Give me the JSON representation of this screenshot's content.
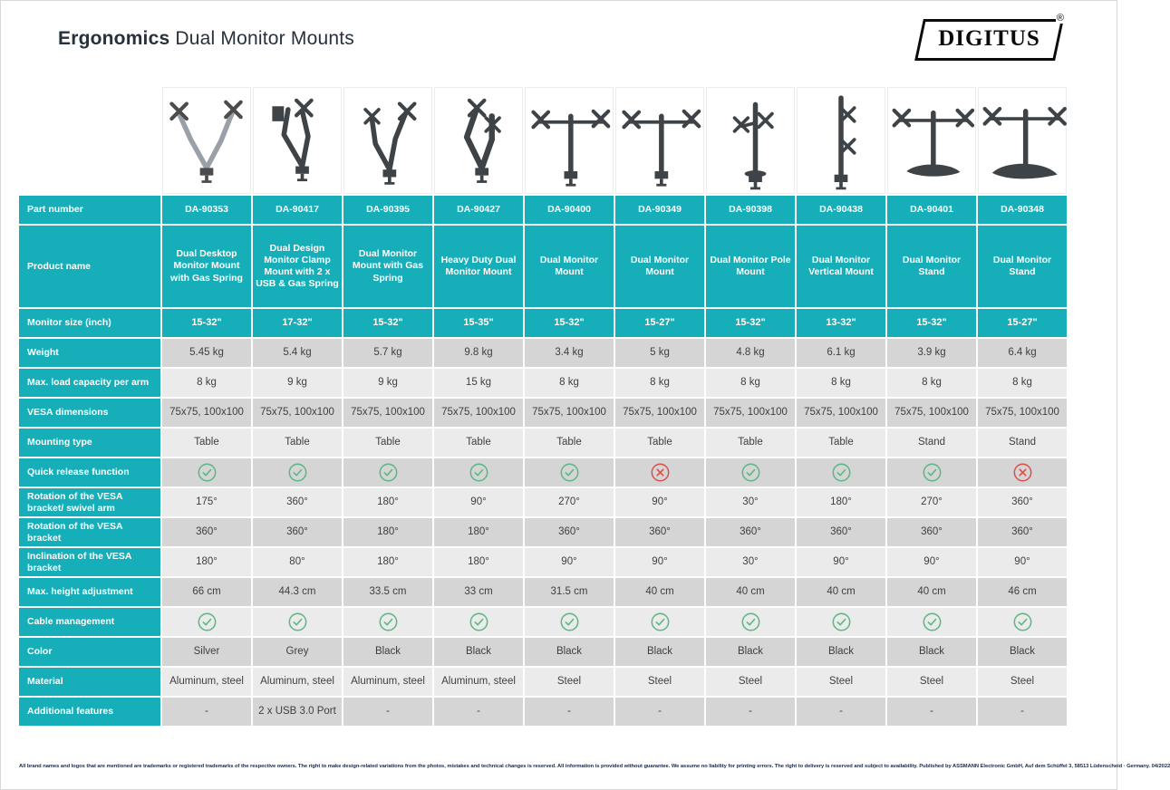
{
  "page": {
    "title_bold": "Ergonomics",
    "title_regular": "Dual Monitor Mounts",
    "brand": "DIGITUS",
    "brand_reg": "®",
    "footer": "All brand names and logos that are mentioned are trademarks or registered trademarks of the respective owners. The right to make design-related variations from the photos, mistakes and technical changes is reserved. All information is provided without guarantee. We assume no liability for printing errors. The right to delivery is reserved and subject to availability. Published by ASSMANN Electronic GmbH, Auf dem Schüffel 3, 58513 Lüdenscheid · Germany. 04/2022"
  },
  "colors": {
    "teal": "#15aeb9",
    "row_dark": "#d5d5d5",
    "row_light": "#ebebeb",
    "check_green": "#5cb885",
    "cross_red": "#d9534f",
    "cell_text": "#3f3f3f",
    "title_ink": "#27313b"
  },
  "table": {
    "row_labels": {
      "part_number": "Part number",
      "product_name": "Product name",
      "monitor_size": "Monitor size (inch)",
      "weight": "Weight",
      "max_load": "Max. load capacity per arm",
      "vesa": "VESA dimensions",
      "mounting": "Mounting type",
      "quick_release": "Quick release function",
      "rotation_swivel": "Rotation of the VESA bracket/ swivel arm",
      "rotation_bracket": "Rotation of the VESA bracket",
      "inclination": "Inclination of the VESA bracket",
      "max_height": "Max. height adjustment",
      "cable": "Cable management",
      "color": "Color",
      "material": "Material",
      "additional": "Additional features"
    },
    "products": [
      {
        "part_number": "DA-90353",
        "product_name": "Dual Desktop Monitor Mount with Gas Spring",
        "monitor_size": "15-32\"",
        "weight": "5.45 kg",
        "max_load": "8 kg",
        "vesa": "75x75, 100x100",
        "mounting": "Table",
        "quick_release": true,
        "rotation_swivel": "175°",
        "rotation_bracket": "360°",
        "inclination": "180°",
        "max_height": "66 cm",
        "cable": true,
        "color": "Silver",
        "material": "Aluminum, steel",
        "additional": "-",
        "image": "arms-silver"
      },
      {
        "part_number": "DA-90417",
        "product_name": "Dual Design Monitor Clamp Mount with 2 x USB & Gas Spring",
        "monitor_size": "17-32\"",
        "weight": "5.4 kg",
        "max_load": "9 kg",
        "vesa": "75x75, 100x100",
        "mounting": "Table",
        "quick_release": true,
        "rotation_swivel": "360°",
        "rotation_bracket": "360°",
        "inclination": "80°",
        "max_height": "44.3 cm",
        "cable": true,
        "color": "Grey",
        "material": "Aluminum, steel",
        "additional": "2 x USB 3.0 Port",
        "image": "arms-2"
      },
      {
        "part_number": "DA-90395",
        "product_name": "Dual Monitor Mount with Gas Spring",
        "monitor_size": "15-32\"",
        "weight": "5.7 kg",
        "max_load": "9 kg",
        "vesa": "75x75, 100x100",
        "mounting": "Table",
        "quick_release": true,
        "rotation_swivel": "180°",
        "rotation_bracket": "180°",
        "inclination": "180°",
        "max_height": "33.5 cm",
        "cable": true,
        "color": "Black",
        "material": "Aluminum, steel",
        "additional": "-",
        "image": "arms-3"
      },
      {
        "part_number": "DA-90427",
        "product_name": "Heavy Duty Dual Monitor Mount",
        "monitor_size": "15-35\"",
        "weight": "9.8 kg",
        "max_load": "15 kg",
        "vesa": "75x75, 100x100",
        "mounting": "Table",
        "quick_release": true,
        "rotation_swivel": "90°",
        "rotation_bracket": "180°",
        "inclination": "180°",
        "max_height": "33 cm",
        "cable": true,
        "color": "Black",
        "material": "Aluminum, steel",
        "additional": "-",
        "image": "arms-4"
      },
      {
        "part_number": "DA-90400",
        "product_name": "Dual Monitor Mount",
        "monitor_size": "15-32\"",
        "weight": "3.4 kg",
        "max_load": "8 kg",
        "vesa": "75x75, 100x100",
        "mounting": "Table",
        "quick_release": true,
        "rotation_swivel": "270°",
        "rotation_bracket": "360°",
        "inclination": "90°",
        "max_height": "31.5 cm",
        "cable": true,
        "color": "Black",
        "material": "Steel",
        "additional": "-",
        "image": "crossbar"
      },
      {
        "part_number": "DA-90349",
        "product_name": "Dual Monitor Mount",
        "monitor_size": "15-27\"",
        "weight": "5 kg",
        "max_load": "8 kg",
        "vesa": "75x75, 100x100",
        "mounting": "Table",
        "quick_release": false,
        "rotation_swivel": "90°",
        "rotation_bracket": "360°",
        "inclination": "90°",
        "max_height": "40 cm",
        "cable": true,
        "color": "Black",
        "material": "Steel",
        "additional": "-",
        "image": "crossbar"
      },
      {
        "part_number": "DA-90398",
        "product_name": "Dual Monitor Pole Mount",
        "monitor_size": "15-32\"",
        "weight": "4.8 kg",
        "max_load": "8 kg",
        "vesa": "75x75, 100x100",
        "mounting": "Table",
        "quick_release": true,
        "rotation_swivel": "30°",
        "rotation_bracket": "360°",
        "inclination": "30°",
        "max_height": "40 cm",
        "cable": true,
        "color": "Black",
        "material": "Steel",
        "additional": "-",
        "image": "pole"
      },
      {
        "part_number": "DA-90438",
        "product_name": "Dual Monitor Vertical Mount",
        "monitor_size": "13-32\"",
        "weight": "6.1 kg",
        "max_load": "8 kg",
        "vesa": "75x75, 100x100",
        "mounting": "Table",
        "quick_release": true,
        "rotation_swivel": "180°",
        "rotation_bracket": "360°",
        "inclination": "90°",
        "max_height": "40 cm",
        "cable": true,
        "color": "Black",
        "material": "Steel",
        "additional": "-",
        "image": "vertical"
      },
      {
        "part_number": "DA-90401",
        "product_name": "Dual Monitor Stand",
        "monitor_size": "15-32\"",
        "weight": "3.9 kg",
        "max_load": "8 kg",
        "vesa": "75x75, 100x100",
        "mounting": "Stand",
        "quick_release": true,
        "rotation_swivel": "270°",
        "rotation_bracket": "360°",
        "inclination": "90°",
        "max_height": "40 cm",
        "cable": true,
        "color": "Black",
        "material": "Steel",
        "additional": "-",
        "image": "stand"
      },
      {
        "part_number": "DA-90348",
        "product_name": "Dual Monitor Stand",
        "monitor_size": "15-27\"",
        "weight": "6.4 kg",
        "max_load": "8 kg",
        "vesa": "75x75, 100x100",
        "mounting": "Stand",
        "quick_release": false,
        "rotation_swivel": "360°",
        "rotation_bracket": "360°",
        "inclination": "90°",
        "max_height": "46 cm",
        "cable": true,
        "color": "Black",
        "material": "Steel",
        "additional": "-",
        "image": "stand-2"
      }
    ]
  }
}
